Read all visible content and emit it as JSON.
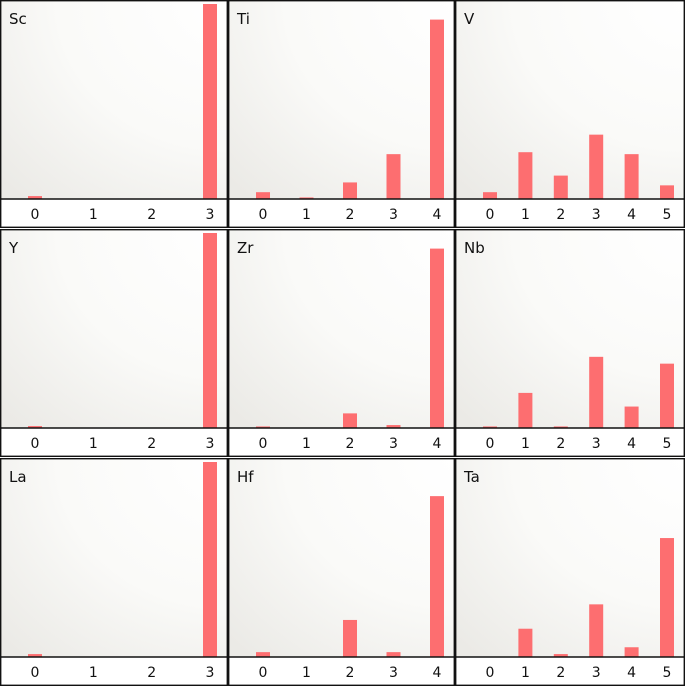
{
  "chart_data": [
    {
      "type": "bar",
      "title": "Sc",
      "categories": [
        "0",
        "1",
        "2",
        "3"
      ],
      "values": [
        1.5,
        0,
        0,
        100
      ],
      "ylim": [
        0,
        100
      ]
    },
    {
      "type": "bar",
      "title": "Ti",
      "categories": [
        "0",
        "1",
        "2",
        "3",
        "4"
      ],
      "values": [
        3.5,
        0.8,
        8.5,
        23,
        92
      ],
      "ylim": [
        0,
        100
      ]
    },
    {
      "type": "bar",
      "title": "V",
      "categories": [
        "0",
        "1",
        "2",
        "3",
        "4",
        "5"
      ],
      "values": [
        3.5,
        24,
        12,
        33,
        23,
        7
      ],
      "ylim": [
        0,
        100
      ]
    },
    {
      "type": "bar",
      "title": "Y",
      "categories": [
        "0",
        "1",
        "2",
        "3"
      ],
      "values": [
        1,
        0,
        0,
        100
      ],
      "ylim": [
        0,
        100
      ]
    },
    {
      "type": "bar",
      "title": "Zr",
      "categories": [
        "0",
        "1",
        "2",
        "3",
        "4"
      ],
      "values": [
        0.8,
        0,
        7.5,
        1.5,
        92
      ],
      "ylim": [
        0,
        100
      ]
    },
    {
      "type": "bar",
      "title": "Nb",
      "categories": [
        "0",
        "1",
        "2",
        "3",
        "4",
        "5"
      ],
      "values": [
        0.8,
        18,
        0.8,
        36.5,
        11,
        33
      ],
      "ylim": [
        0,
        100
      ]
    },
    {
      "type": "bar",
      "title": "La",
      "categories": [
        "0",
        "1",
        "2",
        "3"
      ],
      "values": [
        1.5,
        0,
        0,
        100
      ],
      "ylim": [
        0,
        100
      ]
    },
    {
      "type": "bar",
      "title": "Hf",
      "categories": [
        "0",
        "1",
        "2",
        "3",
        "4"
      ],
      "values": [
        2.5,
        0,
        19,
        2.5,
        82.5
      ],
      "ylim": [
        0,
        100
      ]
    },
    {
      "type": "bar",
      "title": "Ta",
      "categories": [
        "0",
        "1",
        "2",
        "3",
        "4",
        "5"
      ],
      "values": [
        0,
        14.5,
        1.5,
        27,
        5,
        61
      ],
      "ylim": [
        0,
        100
      ]
    }
  ]
}
